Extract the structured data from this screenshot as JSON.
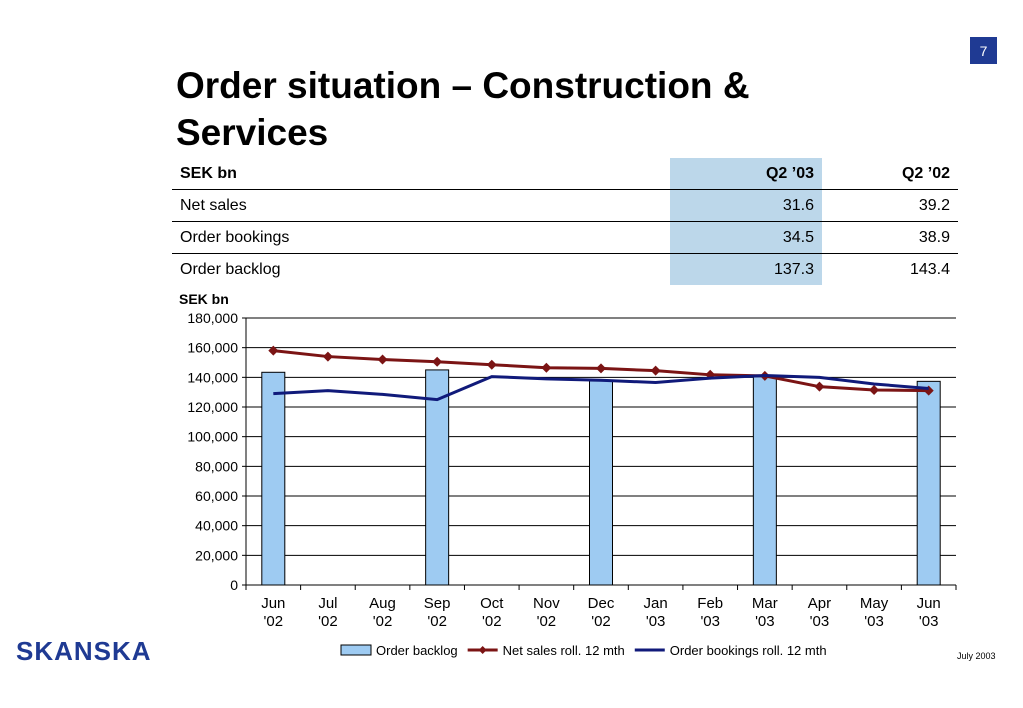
{
  "page_number": "7",
  "title": "Order situation – Construction & Services",
  "table": {
    "headers": [
      "SEK bn",
      "Q2 ’03",
      "Q2 ’02"
    ],
    "rows": [
      {
        "label": "Net sales",
        "q2_03": "31.6",
        "q2_02": "39.2"
      },
      {
        "label": "Order bookings",
        "q2_03": "34.5",
        "q2_02": "38.9"
      },
      {
        "label": "Order backlog",
        "q2_03": "137.3",
        "q2_02": "143.4"
      }
    ]
  },
  "chart_unit": "SEK bn",
  "chart_data": {
    "type": "bar",
    "categories": [
      [
        "Jun",
        "'02"
      ],
      [
        "Jul",
        "'02"
      ],
      [
        "Aug",
        "'02"
      ],
      [
        "Sep",
        "'02"
      ],
      [
        "Oct",
        "'02"
      ],
      [
        "Nov",
        "'02"
      ],
      [
        "Dec",
        "'02"
      ],
      [
        "Jan",
        "'03"
      ],
      [
        "Feb",
        "'03"
      ],
      [
        "Mar",
        "'03"
      ],
      [
        "Apr",
        "'03"
      ],
      [
        "May",
        "'03"
      ],
      [
        "Jun",
        "'03"
      ]
    ],
    "ylim": [
      0,
      180000
    ],
    "yticks": [
      "0",
      "20,000",
      "40,000",
      "60,000",
      "80,000",
      "100,000",
      "120,000",
      "140,000",
      "160,000",
      "180,000"
    ],
    "grid": true,
    "legend_position": "bottom",
    "series": [
      {
        "name": "Order backlog",
        "type": "bar",
        "color": "#9ecbf2",
        "values": [
          143400,
          null,
          null,
          145000,
          null,
          null,
          137500,
          null,
          null,
          140500,
          null,
          null,
          137300
        ]
      },
      {
        "name": "Net sales roll. 12 mth",
        "type": "line",
        "marker": "diamond",
        "color": "#7b1414",
        "values": [
          158000,
          154000,
          152000,
          150500,
          148500,
          146500,
          146000,
          144500,
          141700,
          141000,
          133700,
          131500,
          131000
        ]
      },
      {
        "name": "Order bookings roll. 12 mth",
        "type": "line",
        "color": "#101a7a",
        "values": [
          129000,
          131000,
          128500,
          125000,
          140500,
          139000,
          138000,
          136500,
          139500,
          141200,
          140000,
          135500,
          132500
        ]
      }
    ]
  },
  "logo": "SKANSKA",
  "footer_date": "July 2003"
}
